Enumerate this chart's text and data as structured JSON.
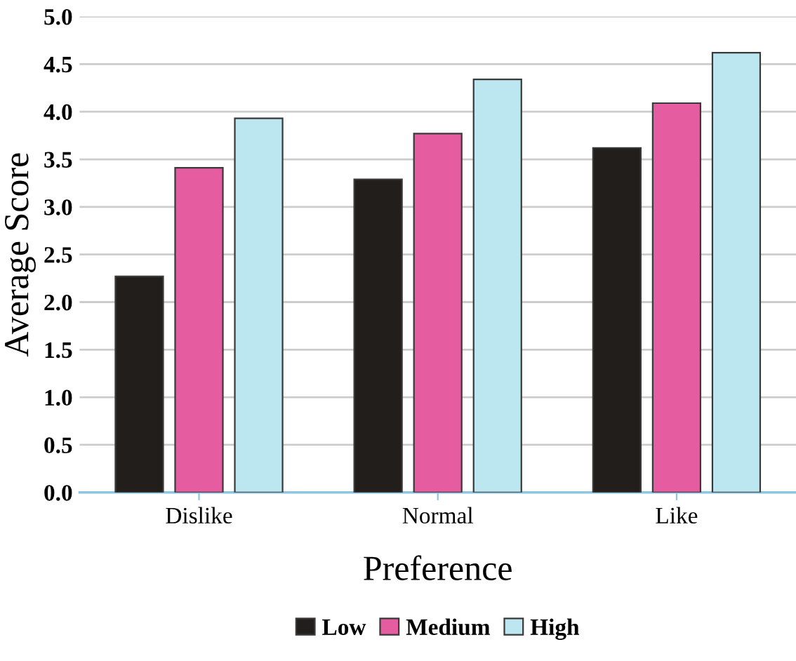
{
  "chart_data": {
    "type": "bar",
    "xlabel": "Preference",
    "ylabel": "Average Score",
    "categories": [
      "Dislike",
      "Normal",
      "Like"
    ],
    "series": [
      {
        "name": "Low",
        "color": "#221e1c",
        "values": [
          2.27,
          3.29,
          3.62
        ]
      },
      {
        "name": "Medium",
        "color": "#e55ca0",
        "values": [
          3.41,
          3.77,
          4.09
        ]
      },
      {
        "name": "High",
        "color": "#bce6f0",
        "values": [
          3.93,
          4.34,
          4.62
        ]
      }
    ],
    "ylim": [
      0,
      5
    ],
    "yticks": [
      {
        "value": 0,
        "label": "0.0"
      },
      0.5,
      {
        "value": 1,
        "label": "1.0"
      },
      1.5,
      {
        "value": 2,
        "label": "2.0"
      },
      2.5,
      {
        "value": 3,
        "label": "3.0"
      },
      3.5,
      {
        "value": 4,
        "label": "4.0"
      },
      4.5,
      {
        "value": 5,
        "label": "5.0"
      }
    ],
    "grid": "y",
    "legend": "bottom"
  }
}
